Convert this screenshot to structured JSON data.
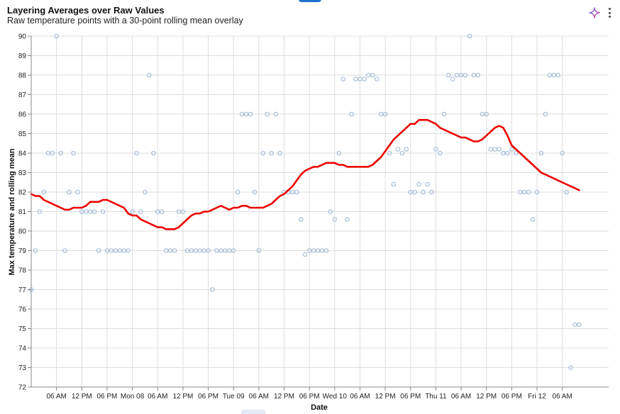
{
  "header": {
    "title": "Layering Averages over Raw Values",
    "subtitle": "Raw temperature points with a 30-point rolling mean overlay"
  },
  "toolbar": {
    "ai_icon": "sparkle-icon",
    "menu_icon": "more-vertical-icon"
  },
  "colors": {
    "points_stroke": "#a9bfd9",
    "rolling_line": "#ee0000",
    "grid": "#dddddd",
    "axis": "#888888"
  },
  "chart_data": {
    "type": "scatter",
    "title": "Layering Averages over Raw Values",
    "subtitle": "Raw temperature points with a 30-point rolling mean overlay",
    "ylabel": "Max temperature and rolling mean",
    "xlabel": "Date",
    "ylim": [
      72,
      90
    ],
    "yticks": [
      72,
      73,
      74,
      75,
      76,
      77,
      78,
      79,
      80,
      81,
      82,
      83,
      84,
      85,
      86,
      87,
      88,
      89,
      90
    ],
    "xlim": [
      "2024-01-07T00:00",
      "2024-01-12T17:00"
    ],
    "xticks": [
      {
        "t": "2024-01-07T06:00",
        "label": "06 AM"
      },
      {
        "t": "2024-01-07T12:00",
        "label": "12 PM"
      },
      {
        "t": "2024-01-07T18:00",
        "label": "06 PM"
      },
      {
        "t": "2024-01-08T00:00",
        "label": "Mon 08"
      },
      {
        "t": "2024-01-08T06:00",
        "label": "06 AM"
      },
      {
        "t": "2024-01-08T12:00",
        "label": "12 PM"
      },
      {
        "t": "2024-01-08T18:00",
        "label": "06 PM"
      },
      {
        "t": "2024-01-09T00:00",
        "label": "Tue 09"
      },
      {
        "t": "2024-01-09T06:00",
        "label": "06 AM"
      },
      {
        "t": "2024-01-09T12:00",
        "label": "12 PM"
      },
      {
        "t": "2024-01-09T18:00",
        "label": "06 PM"
      },
      {
        "t": "2024-01-10T00:00",
        "label": "Wed 10"
      },
      {
        "t": "2024-01-10T06:00",
        "label": "06 AM"
      },
      {
        "t": "2024-01-10T12:00",
        "label": "12 PM"
      },
      {
        "t": "2024-01-10T18:00",
        "label": "06 PM"
      },
      {
        "t": "2024-01-11T00:00",
        "label": "Thu 11"
      },
      {
        "t": "2024-01-11T06:00",
        "label": "06 AM"
      },
      {
        "t": "2024-01-11T12:00",
        "label": "12 PM"
      },
      {
        "t": "2024-01-11T18:00",
        "label": "06 PM"
      },
      {
        "t": "2024-01-12T00:00",
        "label": "Fri 12"
      },
      {
        "t": "2024-01-12T06:00",
        "label": "06 AM"
      }
    ],
    "points": [
      [
        "2024-01-07T00:00",
        77
      ],
      [
        "2024-01-07T01:00",
        79
      ],
      [
        "2024-01-07T02:00",
        81
      ],
      [
        "2024-01-07T03:00",
        82
      ],
      [
        "2024-01-07T04:00",
        84
      ],
      [
        "2024-01-07T05:00",
        84
      ],
      [
        "2024-01-07T06:00",
        90
      ],
      [
        "2024-01-07T07:00",
        84
      ],
      [
        "2024-01-07T08:00",
        79
      ],
      [
        "2024-01-07T09:00",
        82
      ],
      [
        "2024-01-07T10:00",
        84
      ],
      [
        "2024-01-07T11:00",
        82
      ],
      [
        "2024-01-07T12:00",
        81
      ],
      [
        "2024-01-07T13:00",
        81
      ],
      [
        "2024-01-07T14:00",
        81
      ],
      [
        "2024-01-07T15:00",
        81
      ],
      [
        "2024-01-07T16:00",
        79
      ],
      [
        "2024-01-07T17:00",
        81
      ],
      [
        "2024-01-07T18:00",
        79
      ],
      [
        "2024-01-07T19:00",
        79
      ],
      [
        "2024-01-07T20:00",
        79
      ],
      [
        "2024-01-07T21:00",
        79
      ],
      [
        "2024-01-07T22:00",
        79
      ],
      [
        "2024-01-07T23:00",
        79
      ],
      [
        "2024-01-08T00:00",
        81
      ],
      [
        "2024-01-08T01:00",
        84
      ],
      [
        "2024-01-08T02:00",
        81
      ],
      [
        "2024-01-08T03:00",
        82
      ],
      [
        "2024-01-08T04:00",
        88
      ],
      [
        "2024-01-08T05:00",
        84
      ],
      [
        "2024-01-08T06:00",
        81
      ],
      [
        "2024-01-08T07:00",
        81
      ],
      [
        "2024-01-08T08:00",
        79
      ],
      [
        "2024-01-08T09:00",
        79
      ],
      [
        "2024-01-08T10:00",
        79
      ],
      [
        "2024-01-08T11:00",
        81
      ],
      [
        "2024-01-08T12:00",
        81
      ],
      [
        "2024-01-08T13:00",
        79
      ],
      [
        "2024-01-08T14:00",
        79
      ],
      [
        "2024-01-08T15:00",
        79
      ],
      [
        "2024-01-08T16:00",
        79
      ],
      [
        "2024-01-08T17:00",
        79
      ],
      [
        "2024-01-08T18:00",
        79
      ],
      [
        "2024-01-08T19:00",
        77
      ],
      [
        "2024-01-08T20:00",
        79
      ],
      [
        "2024-01-08T21:00",
        79
      ],
      [
        "2024-01-08T22:00",
        79
      ],
      [
        "2024-01-08T23:00",
        79
      ],
      [
        "2024-01-09T00:00",
        79
      ],
      [
        "2024-01-09T01:00",
        82
      ],
      [
        "2024-01-09T02:00",
        86
      ],
      [
        "2024-01-09T03:00",
        86
      ],
      [
        "2024-01-09T04:00",
        86
      ],
      [
        "2024-01-09T05:00",
        82
      ],
      [
        "2024-01-09T06:00",
        79
      ],
      [
        "2024-01-09T07:00",
        84
      ],
      [
        "2024-01-09T08:00",
        86
      ],
      [
        "2024-01-09T09:00",
        84
      ],
      [
        "2024-01-09T10:00",
        86
      ],
      [
        "2024-01-09T11:00",
        84
      ],
      [
        "2024-01-09T12:00",
        82
      ],
      [
        "2024-01-09T13:00",
        82
      ],
      [
        "2024-01-09T14:00",
        82
      ],
      [
        "2024-01-09T15:00",
        82
      ],
      [
        "2024-01-09T16:00",
        80.6
      ],
      [
        "2024-01-09T17:00",
        78.8
      ],
      [
        "2024-01-09T18:00",
        79
      ],
      [
        "2024-01-09T19:00",
        79
      ],
      [
        "2024-01-09T20:00",
        79
      ],
      [
        "2024-01-09T21:00",
        79
      ],
      [
        "2024-01-09T22:00",
        79
      ],
      [
        "2024-01-09T23:00",
        81
      ],
      [
        "2024-01-10T00:00",
        80.6
      ],
      [
        "2024-01-10T01:00",
        84
      ],
      [
        "2024-01-10T02:00",
        87.8
      ],
      [
        "2024-01-10T03:00",
        80.6
      ],
      [
        "2024-01-10T04:00",
        86
      ],
      [
        "2024-01-10T05:00",
        87.8
      ],
      [
        "2024-01-10T06:00",
        87.8
      ],
      [
        "2024-01-10T07:00",
        87.8
      ],
      [
        "2024-01-10T08:00",
        88
      ],
      [
        "2024-01-10T09:00",
        88
      ],
      [
        "2024-01-10T10:00",
        87.8
      ],
      [
        "2024-01-10T11:00",
        86
      ],
      [
        "2024-01-10T12:00",
        86
      ],
      [
        "2024-01-10T13:00",
        84
      ],
      [
        "2024-01-10T14:00",
        82.4
      ],
      [
        "2024-01-10T15:00",
        84.2
      ],
      [
        "2024-01-10T16:00",
        84
      ],
      [
        "2024-01-10T17:00",
        84.2
      ],
      [
        "2024-01-10T18:00",
        82
      ],
      [
        "2024-01-10T19:00",
        82
      ],
      [
        "2024-01-10T20:00",
        82.4
      ],
      [
        "2024-01-10T21:00",
        82
      ],
      [
        "2024-01-10T22:00",
        82.4
      ],
      [
        "2024-01-10T23:00",
        82
      ],
      [
        "2024-01-11T00:00",
        84.2
      ],
      [
        "2024-01-11T01:00",
        84
      ],
      [
        "2024-01-11T02:00",
        86
      ],
      [
        "2024-01-11T03:00",
        88
      ],
      [
        "2024-01-11T04:00",
        87.8
      ],
      [
        "2024-01-11T05:00",
        88
      ],
      [
        "2024-01-11T06:00",
        88
      ],
      [
        "2024-01-11T07:00",
        88
      ],
      [
        "2024-01-11T08:00",
        90
      ],
      [
        "2024-01-11T09:00",
        88
      ],
      [
        "2024-01-11T10:00",
        88
      ],
      [
        "2024-01-11T11:00",
        86
      ],
      [
        "2024-01-11T12:00",
        86
      ],
      [
        "2024-01-11T13:00",
        84.2
      ],
      [
        "2024-01-11T14:00",
        84.2
      ],
      [
        "2024-01-11T15:00",
        84.2
      ],
      [
        "2024-01-11T16:00",
        84
      ],
      [
        "2024-01-11T17:00",
        84
      ],
      [
        "2024-01-11T18:00",
        84.2
      ],
      [
        "2024-01-11T19:00",
        84
      ],
      [
        "2024-01-11T20:00",
        82
      ],
      [
        "2024-01-11T21:00",
        82
      ],
      [
        "2024-01-11T22:00",
        82
      ],
      [
        "2024-01-11T23:00",
        80.6
      ],
      [
        "2024-01-12T00:00",
        82
      ],
      [
        "2024-01-12T01:00",
        84
      ],
      [
        "2024-01-12T02:00",
        86
      ],
      [
        "2024-01-12T03:00",
        88
      ],
      [
        "2024-01-12T04:00",
        88
      ],
      [
        "2024-01-12T05:00",
        88
      ],
      [
        "2024-01-12T06:00",
        84
      ],
      [
        "2024-01-12T07:00",
        82
      ],
      [
        "2024-01-12T08:00",
        73
      ],
      [
        "2024-01-12T09:00",
        75.2
      ],
      [
        "2024-01-12T10:00",
        75.2
      ]
    ],
    "rolling_mean": [
      [
        "2024-01-07T00:00",
        81.9
      ],
      [
        "2024-01-07T01:00",
        81.8
      ],
      [
        "2024-01-07T02:00",
        81.8
      ],
      [
        "2024-01-07T03:00",
        81.6
      ],
      [
        "2024-01-07T04:00",
        81.5
      ],
      [
        "2024-01-07T05:00",
        81.4
      ],
      [
        "2024-01-07T06:00",
        81.3
      ],
      [
        "2024-01-07T07:00",
        81.2
      ],
      [
        "2024-01-07T08:00",
        81.1
      ],
      [
        "2024-01-07T09:00",
        81.1
      ],
      [
        "2024-01-07T10:00",
        81.2
      ],
      [
        "2024-01-07T11:00",
        81.2
      ],
      [
        "2024-01-07T12:00",
        81.2
      ],
      [
        "2024-01-07T13:00",
        81.3
      ],
      [
        "2024-01-07T14:00",
        81.5
      ],
      [
        "2024-01-07T15:00",
        81.5
      ],
      [
        "2024-01-07T16:00",
        81.5
      ],
      [
        "2024-01-07T17:00",
        81.6
      ],
      [
        "2024-01-07T18:00",
        81.6
      ],
      [
        "2024-01-07T19:00",
        81.5
      ],
      [
        "2024-01-07T20:00",
        81.4
      ],
      [
        "2024-01-07T21:00",
        81.3
      ],
      [
        "2024-01-07T22:00",
        81.2
      ],
      [
        "2024-01-07T23:00",
        80.9
      ],
      [
        "2024-01-08T00:00",
        80.8
      ],
      [
        "2024-01-08T01:00",
        80.8
      ],
      [
        "2024-01-08T02:00",
        80.6
      ],
      [
        "2024-01-08T03:00",
        80.5
      ],
      [
        "2024-01-08T04:00",
        80.4
      ],
      [
        "2024-01-08T05:00",
        80.3
      ],
      [
        "2024-01-08T06:00",
        80.2
      ],
      [
        "2024-01-08T07:00",
        80.2
      ],
      [
        "2024-01-08T08:00",
        80.1
      ],
      [
        "2024-01-08T09:00",
        80.1
      ],
      [
        "2024-01-08T10:00",
        80.1
      ],
      [
        "2024-01-08T11:00",
        80.2
      ],
      [
        "2024-01-08T12:00",
        80.4
      ],
      [
        "2024-01-08T13:00",
        80.6
      ],
      [
        "2024-01-08T14:00",
        80.8
      ],
      [
        "2024-01-08T15:00",
        80.9
      ],
      [
        "2024-01-08T16:00",
        80.9
      ],
      [
        "2024-01-08T17:00",
        81.0
      ],
      [
        "2024-01-08T18:00",
        81.0
      ],
      [
        "2024-01-08T19:00",
        81.1
      ],
      [
        "2024-01-08T20:00",
        81.2
      ],
      [
        "2024-01-08T21:00",
        81.3
      ],
      [
        "2024-01-08T22:00",
        81.2
      ],
      [
        "2024-01-08T23:00",
        81.1
      ],
      [
        "2024-01-09T00:00",
        81.2
      ],
      [
        "2024-01-09T01:00",
        81.2
      ],
      [
        "2024-01-09T02:00",
        81.3
      ],
      [
        "2024-01-09T03:00",
        81.3
      ],
      [
        "2024-01-09T04:00",
        81.2
      ],
      [
        "2024-01-09T05:00",
        81.2
      ],
      [
        "2024-01-09T06:00",
        81.2
      ],
      [
        "2024-01-09T07:00",
        81.2
      ],
      [
        "2024-01-09T08:00",
        81.3
      ],
      [
        "2024-01-09T09:00",
        81.4
      ],
      [
        "2024-01-09T10:00",
        81.6
      ],
      [
        "2024-01-09T11:00",
        81.8
      ],
      [
        "2024-01-09T12:00",
        81.9
      ],
      [
        "2024-01-09T13:00",
        82.1
      ],
      [
        "2024-01-09T14:00",
        82.3
      ],
      [
        "2024-01-09T15:00",
        82.6
      ],
      [
        "2024-01-09T16:00",
        82.9
      ],
      [
        "2024-01-09T17:00",
        83.1
      ],
      [
        "2024-01-09T18:00",
        83.2
      ],
      [
        "2024-01-09T19:00",
        83.3
      ],
      [
        "2024-01-09T20:00",
        83.3
      ],
      [
        "2024-01-09T21:00",
        83.4
      ],
      [
        "2024-01-09T22:00",
        83.5
      ],
      [
        "2024-01-09T23:00",
        83.5
      ],
      [
        "2024-01-10T00:00",
        83.5
      ],
      [
        "2024-01-10T01:00",
        83.4
      ],
      [
        "2024-01-10T02:00",
        83.4
      ],
      [
        "2024-01-10T03:00",
        83.3
      ],
      [
        "2024-01-10T04:00",
        83.3
      ],
      [
        "2024-01-10T05:00",
        83.3
      ],
      [
        "2024-01-10T06:00",
        83.3
      ],
      [
        "2024-01-10T07:00",
        83.3
      ],
      [
        "2024-01-10T08:00",
        83.3
      ],
      [
        "2024-01-10T09:00",
        83.4
      ],
      [
        "2024-01-10T10:00",
        83.6
      ],
      [
        "2024-01-10T11:00",
        83.8
      ],
      [
        "2024-01-10T12:00",
        84.1
      ],
      [
        "2024-01-10T13:00",
        84.4
      ],
      [
        "2024-01-10T14:00",
        84.7
      ],
      [
        "2024-01-10T15:00",
        84.9
      ],
      [
        "2024-01-10T16:00",
        85.1
      ],
      [
        "2024-01-10T17:00",
        85.3
      ],
      [
        "2024-01-10T18:00",
        85.5
      ],
      [
        "2024-01-10T19:00",
        85.5
      ],
      [
        "2024-01-10T20:00",
        85.7
      ],
      [
        "2024-01-10T21:00",
        85.7
      ],
      [
        "2024-01-10T22:00",
        85.7
      ],
      [
        "2024-01-10T23:00",
        85.6
      ],
      [
        "2024-01-11T00:00",
        85.5
      ],
      [
        "2024-01-11T01:00",
        85.3
      ],
      [
        "2024-01-11T02:00",
        85.2
      ],
      [
        "2024-01-11T03:00",
        85.1
      ],
      [
        "2024-01-11T04:00",
        85.0
      ],
      [
        "2024-01-11T05:00",
        84.9
      ],
      [
        "2024-01-11T06:00",
        84.8
      ],
      [
        "2024-01-11T07:00",
        84.8
      ],
      [
        "2024-01-11T08:00",
        84.7
      ],
      [
        "2024-01-11T09:00",
        84.6
      ],
      [
        "2024-01-11T10:00",
        84.6
      ],
      [
        "2024-01-11T11:00",
        84.7
      ],
      [
        "2024-01-11T12:00",
        84.9
      ],
      [
        "2024-01-11T13:00",
        85.1
      ],
      [
        "2024-01-11T14:00",
        85.3
      ],
      [
        "2024-01-11T15:00",
        85.4
      ],
      [
        "2024-01-11T16:00",
        85.3
      ],
      [
        "2024-01-11T17:00",
        84.9
      ],
      [
        "2024-01-11T18:00",
        84.4
      ],
      [
        "2024-01-11T19:00",
        84.2
      ],
      [
        "2024-01-11T20:00",
        84.0
      ],
      [
        "2024-01-11T21:00",
        83.8
      ],
      [
        "2024-01-11T22:00",
        83.6
      ],
      [
        "2024-01-11T23:00",
        83.4
      ],
      [
        "2024-01-12T00:00",
        83.2
      ],
      [
        "2024-01-12T01:00",
        83.0
      ],
      [
        "2024-01-12T02:00",
        82.9
      ],
      [
        "2024-01-12T03:00",
        82.8
      ],
      [
        "2024-01-12T04:00",
        82.7
      ],
      [
        "2024-01-12T05:00",
        82.6
      ],
      [
        "2024-01-12T06:00",
        82.5
      ],
      [
        "2024-01-12T07:00",
        82.4
      ],
      [
        "2024-01-12T08:00",
        82.3
      ],
      [
        "2024-01-12T09:00",
        82.2
      ],
      [
        "2024-01-12T10:00",
        82.1
      ]
    ],
    "grid": true
  }
}
